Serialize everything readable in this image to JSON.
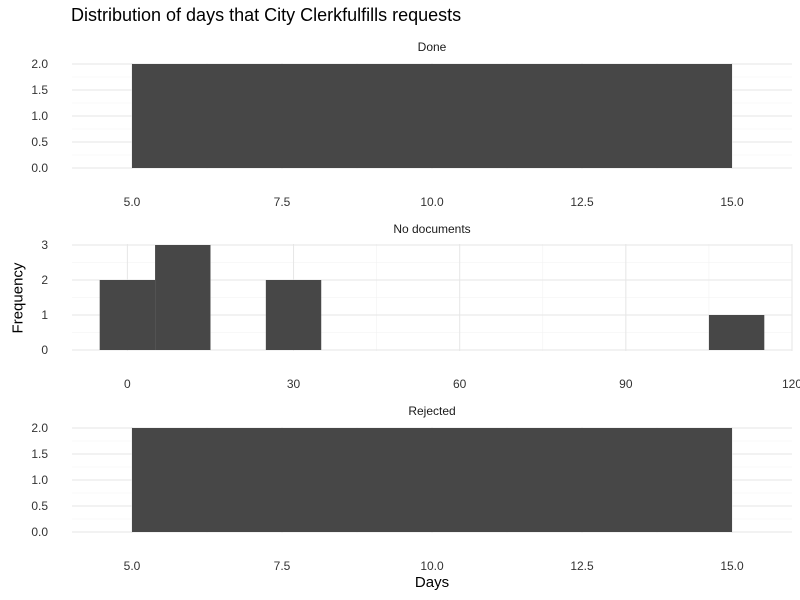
{
  "chart_data": {
    "type": "bar",
    "title": "Distribution of days that City Clerkfulfills requests",
    "xlabel": "Days",
    "ylabel": "Frequency",
    "bar_color": "#474747",
    "grid": true,
    "legend": "none",
    "panels": [
      {
        "strip": "Done",
        "xlim": [
          4,
          16
        ],
        "ylim": [
          0,
          2
        ],
        "x_ticks": [
          5.0,
          7.5,
          10.0,
          12.5,
          15.0
        ],
        "x_tick_labels": [
          "5.0",
          "7.5",
          "10.0",
          "12.5",
          "15.0"
        ],
        "y_ticks": [
          0,
          0.5,
          1,
          1.5,
          2
        ],
        "y_tick_labels": [
          "0.0",
          "0.5",
          "1.0",
          "1.5",
          "2.0"
        ],
        "bins": [
          {
            "x0": 5,
            "x1": 15,
            "count": 2
          }
        ]
      },
      {
        "strip": "No documents",
        "xlim": [
          -10,
          120
        ],
        "ylim": [
          0,
          3
        ],
        "x_ticks": [
          0,
          30,
          60,
          90,
          120
        ],
        "x_tick_labels": [
          "0",
          "30",
          "60",
          "90",
          "120"
        ],
        "y_ticks": [
          0,
          1,
          2,
          3
        ],
        "y_tick_labels": [
          "0",
          "1",
          "2",
          "3"
        ],
        "bins": [
          {
            "x0": -5,
            "x1": 5,
            "count": 2
          },
          {
            "x0": 5,
            "x1": 15,
            "count": 3
          },
          {
            "x0": 25,
            "x1": 35,
            "count": 2
          },
          {
            "x0": 105,
            "x1": 115,
            "count": 1
          }
        ]
      },
      {
        "strip": "Rejected",
        "xlim": [
          4,
          16
        ],
        "ylim": [
          0,
          2
        ],
        "x_ticks": [
          5.0,
          7.5,
          10.0,
          12.5,
          15.0
        ],
        "x_tick_labels": [
          "5.0",
          "7.5",
          "10.0",
          "12.5",
          "15.0"
        ],
        "y_ticks": [
          0,
          0.5,
          1,
          1.5,
          2
        ],
        "y_tick_labels": [
          "0.0",
          "0.5",
          "1.0",
          "1.5",
          "2.0"
        ],
        "bins": [
          {
            "x0": 5,
            "x1": 15,
            "count": 2
          }
        ]
      }
    ]
  }
}
